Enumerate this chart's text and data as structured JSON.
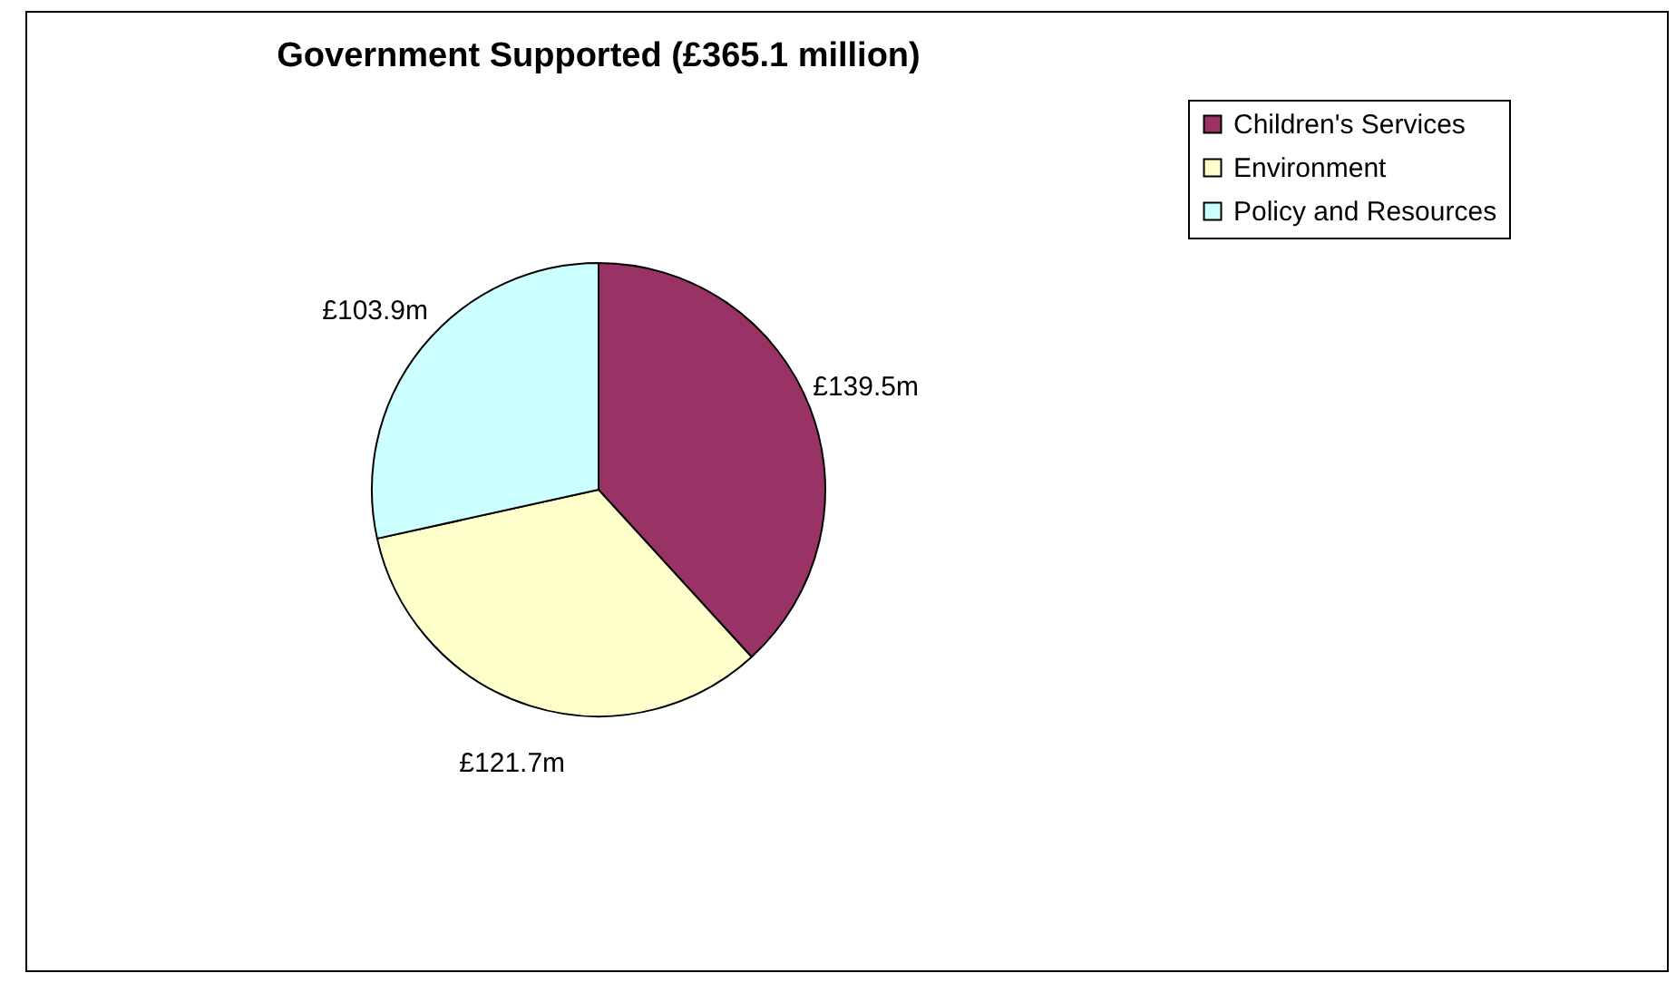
{
  "chart_data": {
    "type": "pie",
    "title": "Government Supported (£365.1 million)",
    "categories": [
      "Children's Services",
      "Environment",
      "Policy and Resources"
    ],
    "values": [
      139.5,
      121.7,
      103.9
    ],
    "colors": [
      "#993366",
      "#ffffcc",
      "#ccffff"
    ],
    "value_labels": [
      "£139.5m",
      "£121.7m",
      "£103.9m"
    ],
    "legend": "right"
  }
}
